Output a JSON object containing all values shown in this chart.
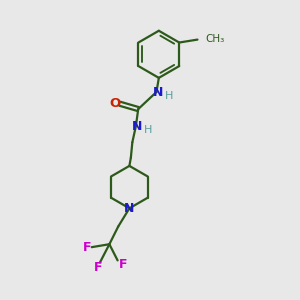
{
  "bg_color": "#e8e8e8",
  "bond_color": "#2d5a1b",
  "N_color": "#1a1acc",
  "O_color": "#cc2200",
  "F_color": "#cc00cc",
  "H_color": "#5a9ea0",
  "line_width": 1.6,
  "fig_size": [
    3.0,
    3.0
  ],
  "dpi": 100,
  "xlim": [
    0,
    10
  ],
  "ylim": [
    0,
    10
  ]
}
